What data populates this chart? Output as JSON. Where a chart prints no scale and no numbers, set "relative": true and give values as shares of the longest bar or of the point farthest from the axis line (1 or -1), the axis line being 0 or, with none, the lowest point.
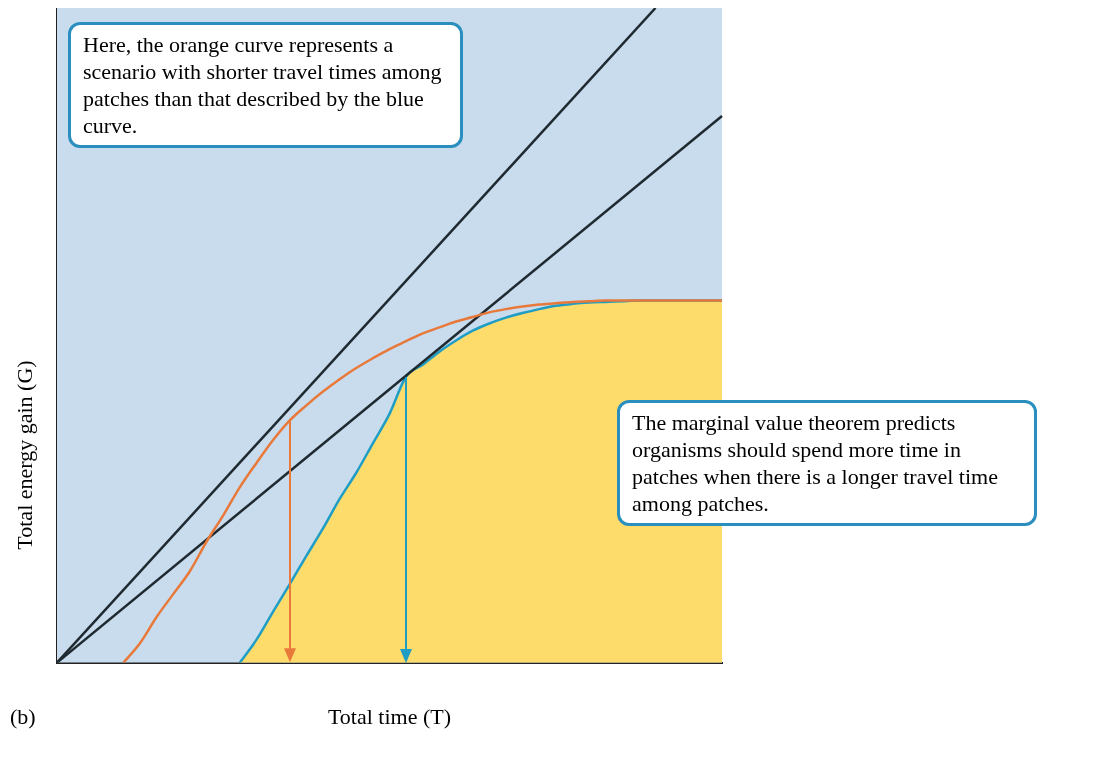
{
  "chart_data": {
    "type": "line",
    "relative": true,
    "xlabel": "Total time (T)",
    "ylabel": "Total energy gain (G)",
    "legend": false,
    "grid": false,
    "marker": "none",
    "line_style": "solid",
    "annotations": [
      "Here, the orange curve represents a scenario with shorter travel times among patches than that described by the blue curve.",
      "The marginal value theorem predicts organisms should spend more time in patches when there is a longer travel time among patches.",
      "(b)"
    ],
    "categories": [
      null,
      null,
      null,
      null,
      null,
      null,
      null,
      null,
      null,
      null,
      null,
      null,
      null,
      null,
      null,
      null,
      null,
      null,
      null,
      null,
      null,
      null,
      null,
      null,
      null,
      null,
      null,
      null,
      null,
      null,
      null,
      null,
      null,
      null,
      null,
      null,
      null,
      null,
      null,
      null,
      null
    ],
    "series": [
      {
        "type": "area",
        "color": "#fddc6c",
        "values": [
          null,
          null,
          null,
          null,
          null,
          null,
          null,
          null,
          null,
          null,
          null,
          0,
          0.035,
          0.078,
          0.12,
          0.163,
          0.205,
          0.25,
          0.29,
          0.335,
          0.38,
          0.437,
          0.455,
          0.475,
          0.492,
          0.507,
          0.518,
          0.527,
          0.534,
          0.54,
          0.545,
          0.548,
          0.55,
          0.551,
          0.552,
          0.553,
          0.553,
          0.553,
          0.553,
          0.553,
          0.553
        ]
      },
      {
        "color": "#1f2a30",
        "values": [
          0,
          null,
          null,
          null,
          null,
          null,
          null,
          null,
          null,
          null,
          null,
          null,
          null,
          null,
          null,
          null,
          null,
          null,
          null,
          null,
          null,
          null,
          null,
          null,
          null,
          null,
          null,
          null,
          null,
          null,
          null,
          null,
          null,
          null,
          null,
          null,
          1,
          null,
          null,
          null,
          null
        ]
      },
      {
        "color": "#1f2a30",
        "values": [
          0,
          null,
          null,
          null,
          null,
          null,
          null,
          null,
          null,
          null,
          null,
          null,
          null,
          null,
          null,
          null,
          null,
          null,
          null,
          null,
          null,
          null,
          null,
          null,
          null,
          null,
          null,
          null,
          null,
          null,
          null,
          null,
          null,
          null,
          null,
          null,
          null,
          null,
          null,
          null,
          0.835
        ]
      },
      {
        "color": "#e8793a",
        "values": [
          null,
          null,
          null,
          null,
          0,
          0.03,
          0.07,
          0.105,
          0.14,
          0.185,
          0.225,
          0.268,
          0.305,
          0.34,
          0.37,
          0.393,
          0.414,
          0.433,
          0.45,
          0.465,
          0.479,
          0.491,
          0.503,
          0.512,
          0.521,
          0.528,
          0.535,
          0.54,
          0.544,
          0.547,
          0.549,
          0.551,
          0.552,
          0.553,
          0.553,
          0.553,
          0.553,
          0.553,
          0.553,
          0.553,
          0.553
        ]
      }
    ]
  }
}
